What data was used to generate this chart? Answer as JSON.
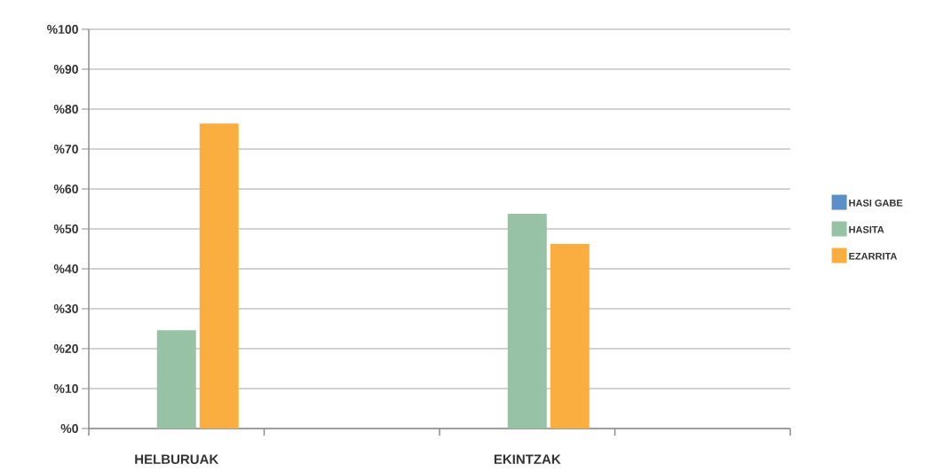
{
  "chart_data": {
    "type": "bar",
    "categories": [
      "HELBURUAK",
      null,
      "EKINTZAK",
      null
    ],
    "series": [
      {
        "name": "HASI GABE",
        "color": "#5b8fc7",
        "values": [
          0,
          null,
          0,
          null
        ]
      },
      {
        "name": "HASITA",
        "color": "#97c2a5",
        "values": [
          24.6,
          null,
          53.8,
          null
        ]
      },
      {
        "name": "EZARRITA",
        "color": "#fbae40",
        "values": [
          76.4,
          null,
          46.2,
          null
        ]
      }
    ],
    "ylim": [
      0,
      100
    ],
    "yticks": [
      {
        "value": 0,
        "label": "%0"
      },
      {
        "value": 10,
        "label": "%10"
      },
      {
        "value": 20,
        "label": "%20"
      },
      {
        "value": 30,
        "label": "%30"
      },
      {
        "value": 40,
        "label": "%40"
      },
      {
        "value": 50,
        "label": "%50"
      },
      {
        "value": 60,
        "label": "%60"
      },
      {
        "value": 70,
        "label": "%70"
      },
      {
        "value": 80,
        "label": "%80"
      },
      {
        "value": 90,
        "label": "%90"
      },
      {
        "value": 100,
        "label": "%100"
      }
    ],
    "grid": "y",
    "legend": "right"
  }
}
